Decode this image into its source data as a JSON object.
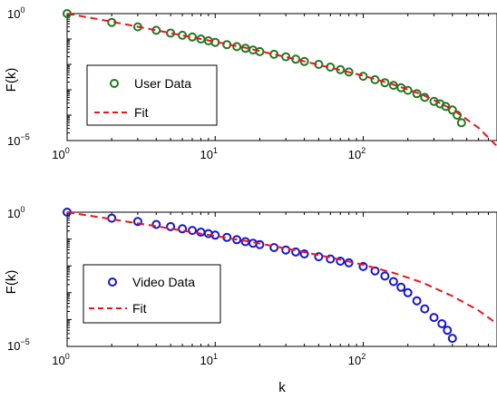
{
  "chart_data": [
    {
      "type": "scatter",
      "title": "",
      "xlabel": "",
      "ylabel": "F(k)",
      "xscale": "log",
      "yscale": "log",
      "xlim": [
        1,
        800
      ],
      "ylim": [
        1e-05,
        1
      ],
      "x_ticks": [
        {
          "value": 1,
          "base": "10",
          "exp": "0"
        },
        {
          "value": 10,
          "base": "10",
          "exp": "1"
        },
        {
          "value": 100,
          "base": "10",
          "exp": "2"
        }
      ],
      "y_ticks": [
        {
          "value": 1,
          "base": "10",
          "exp": "0"
        },
        {
          "value": 1e-05,
          "base": "10",
          "exp": "−5"
        }
      ],
      "grid": false,
      "legend_position": "center-left",
      "series": [
        {
          "name": "User Data",
          "kind": "markers",
          "marker": "circle",
          "color": "#1f7a1f",
          "points": [
            [
              1,
              1.0
            ],
            [
              2,
              0.45
            ],
            [
              3,
              0.3
            ],
            [
              4,
              0.22
            ],
            [
              5,
              0.17
            ],
            [
              6,
              0.14
            ],
            [
              7,
              0.12
            ],
            [
              8,
              0.1
            ],
            [
              9,
              0.085
            ],
            [
              10,
              0.074
            ],
            [
              12,
              0.06
            ],
            [
              14,
              0.05
            ],
            [
              16,
              0.043
            ],
            [
              18,
              0.037
            ],
            [
              20,
              0.032
            ],
            [
              25,
              0.025
            ],
            [
              30,
              0.02
            ],
            [
              35,
              0.016
            ],
            [
              40,
              0.013
            ],
            [
              50,
              0.01
            ],
            [
              60,
              0.0078
            ],
            [
              70,
              0.0062
            ],
            [
              80,
              0.005
            ],
            [
              100,
              0.0034
            ],
            [
              120,
              0.0025
            ],
            [
              140,
              0.0019
            ],
            [
              160,
              0.0015
            ],
            [
              180,
              0.0012
            ],
            [
              200,
              0.00095
            ],
            [
              230,
              0.0007
            ],
            [
              260,
              0.0005
            ],
            [
              300,
              0.00035
            ],
            [
              330,
              0.00028
            ],
            [
              360,
              0.00022
            ],
            [
              400,
              0.00016
            ],
            [
              430,
              0.0001
            ],
            [
              460,
              5e-05
            ]
          ]
        },
        {
          "name": "Fit",
          "kind": "line",
          "dash": true,
          "color": "#e8161c",
          "points": [
            [
              1,
              1.0
            ],
            [
              2,
              0.48
            ],
            [
              4,
              0.22
            ],
            [
              8,
              0.1
            ],
            [
              16,
              0.045
            ],
            [
              32,
              0.018
            ],
            [
              64,
              0.0068
            ],
            [
              100,
              0.0036
            ],
            [
              160,
              0.0016
            ],
            [
              250,
              0.00065
            ],
            [
              400,
              0.00017
            ],
            [
              600,
              3.2e-05
            ],
            [
              800,
              6e-06
            ]
          ]
        }
      ]
    },
    {
      "type": "scatter",
      "title": "",
      "xlabel": "k",
      "ylabel": "F(k)",
      "xscale": "log",
      "yscale": "log",
      "xlim": [
        1,
        800
      ],
      "ylim": [
        1e-05,
        1
      ],
      "x_ticks": [
        {
          "value": 1,
          "base": "10",
          "exp": "0"
        },
        {
          "value": 10,
          "base": "10",
          "exp": "1"
        },
        {
          "value": 100,
          "base": "10",
          "exp": "2"
        }
      ],
      "y_ticks": [
        {
          "value": 1,
          "base": "10",
          "exp": "0"
        },
        {
          "value": 1e-05,
          "base": "10",
          "exp": "−5"
        }
      ],
      "grid": false,
      "legend_position": "center-left",
      "series": [
        {
          "name": "Video Data",
          "kind": "markers",
          "marker": "circle",
          "color": "#1414d6",
          "points": [
            [
              1,
              1.0
            ],
            [
              2,
              0.6
            ],
            [
              3,
              0.45
            ],
            [
              4,
              0.35
            ],
            [
              5,
              0.29
            ],
            [
              6,
              0.24
            ],
            [
              7,
              0.21
            ],
            [
              8,
              0.18
            ],
            [
              9,
              0.16
            ],
            [
              10,
              0.14
            ],
            [
              12,
              0.115
            ],
            [
              14,
              0.095
            ],
            [
              16,
              0.08
            ],
            [
              18,
              0.07
            ],
            [
              20,
              0.062
            ],
            [
              25,
              0.048
            ],
            [
              30,
              0.039
            ],
            [
              35,
              0.033
            ],
            [
              40,
              0.028
            ],
            [
              50,
              0.022
            ],
            [
              60,
              0.018
            ],
            [
              70,
              0.015
            ],
            [
              80,
              0.013
            ],
            [
              100,
              0.0095
            ],
            [
              120,
              0.0065
            ],
            [
              140,
              0.0042
            ],
            [
              160,
              0.0026
            ],
            [
              180,
              0.0016
            ],
            [
              200,
              0.001
            ],
            [
              230,
              0.0005
            ],
            [
              260,
              0.00025
            ],
            [
              300,
              0.00012
            ],
            [
              340,
              7e-05
            ],
            [
              370,
              4e-05
            ],
            [
              400,
              2e-05
            ]
          ]
        },
        {
          "name": "Fit",
          "kind": "line",
          "dash": true,
          "color": "#e8161c",
          "points": [
            [
              1,
              1.0
            ],
            [
              2,
              0.55
            ],
            [
              4,
              0.3
            ],
            [
              8,
              0.16
            ],
            [
              16,
              0.085
            ],
            [
              32,
              0.042
            ],
            [
              64,
              0.019
            ],
            [
              100,
              0.011
            ],
            [
              160,
              0.0055
            ],
            [
              250,
              0.0024
            ],
            [
              400,
              0.00075
            ],
            [
              600,
              0.00022
            ],
            [
              800,
              7e-05
            ]
          ]
        }
      ]
    }
  ]
}
